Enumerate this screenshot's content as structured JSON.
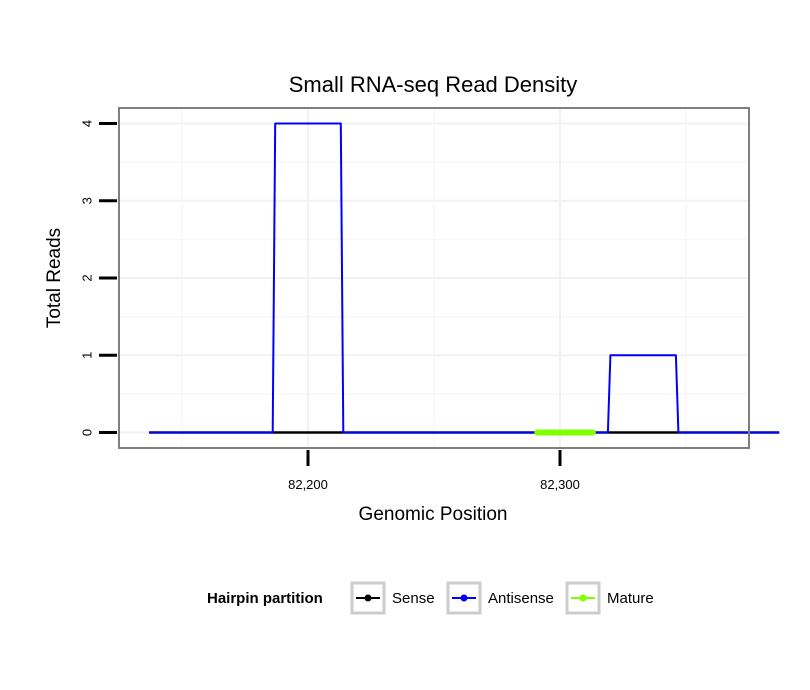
{
  "chart_data": {
    "type": "line",
    "title": "Small RNA-seq Read Density",
    "xlabel": "Genomic Position",
    "ylabel": "Total Reads",
    "xlim": [
      82125,
      82375
    ],
    "ylim": [
      -0.2,
      4.2
    ],
    "x_ticks": [
      82200,
      82300
    ],
    "x_tick_labels": [
      "82,200",
      "82,300"
    ],
    "y_ticks": [
      0,
      1,
      2,
      3,
      4
    ],
    "y_tick_labels": [
      "0",
      "1",
      "2",
      "3",
      "4"
    ],
    "grid": true,
    "legend_position": "bottom",
    "legend_title": "Hairpin partition",
    "series": [
      {
        "name": "Sense",
        "color": "#000000",
        "x": [
          82137,
          82387
        ],
        "y": [
          0,
          0
        ]
      },
      {
        "name": "Antisense",
        "color": "#0000ff",
        "x": [
          82137,
          82186,
          82187,
          82213,
          82214,
          82319,
          82320,
          82346,
          82347,
          82387
        ],
        "y": [
          0,
          0,
          4,
          4,
          0,
          0,
          1,
          1,
          0,
          0
        ]
      },
      {
        "name": "Mature",
        "color": "#7fff00",
        "x": [
          82291,
          82313
        ],
        "y": [
          0,
          0
        ]
      }
    ]
  }
}
